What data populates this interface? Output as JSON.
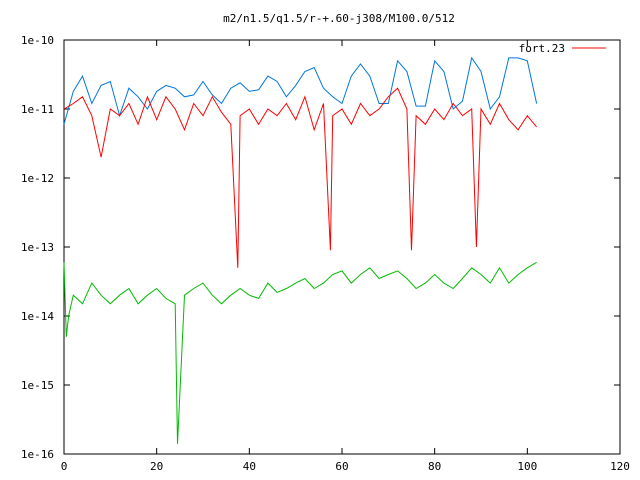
{
  "chart_data": {
    "type": "line",
    "title": "m2/n1.5/q1.5/r-+.60-j308/M100.0/512",
    "xlabel": "",
    "ylabel": "",
    "xlim": [
      0,
      120
    ],
    "ylim": [
      1e-16,
      1e-10
    ],
    "yscale": "log",
    "grid": false,
    "legend_position": "top-right",
    "x_ticks": [
      0,
      20,
      40,
      60,
      80,
      100,
      120
    ],
    "x_tick_labels": [
      "0",
      "20",
      "40",
      "60",
      "80",
      "100",
      "120"
    ],
    "y_ticks": [
      1e-16,
      1e-15,
      1e-14,
      1e-13,
      1e-12,
      1e-11,
      1e-10
    ],
    "y_tick_labels": [
      "1e-16",
      "1e-15",
      "1e-14",
      "1e-13",
      "1e-12",
      "1e-11",
      "1e-10"
    ],
    "series": [
      {
        "name": "",
        "color": "#0077dd",
        "x": [
          0,
          2,
          4,
          6,
          8,
          10,
          12,
          14,
          16,
          18,
          20,
          22,
          24,
          26,
          28,
          30,
          32,
          34,
          36,
          38,
          40,
          42,
          44,
          46,
          48,
          50,
          52,
          54,
          56,
          58,
          60,
          62,
          64,
          66,
          68,
          70,
          72,
          74,
          76,
          78,
          80,
          82,
          84,
          86,
          88,
          90,
          92,
          94,
          96,
          98,
          100,
          102
        ],
        "y": [
          6e-12,
          1.8e-11,
          3e-11,
          1.2e-11,
          2.2e-11,
          2.5e-11,
          8e-12,
          2e-11,
          1.5e-11,
          1e-11,
          1.8e-11,
          2.2e-11,
          2e-11,
          1.5e-11,
          1.6e-11,
          2.5e-11,
          1.6e-11,
          1.2e-11,
          2e-11,
          2.4e-11,
          1.8e-11,
          1.9e-11,
          3e-11,
          2.5e-11,
          1.5e-11,
          2.2e-11,
          3.5e-11,
          4e-11,
          2e-11,
          1.5e-11,
          1.2e-11,
          3e-11,
          4.5e-11,
          3e-11,
          1.2e-11,
          1.2e-11,
          5e-11,
          3.5e-11,
          1.1e-11,
          1.1e-11,
          5e-11,
          3.5e-11,
          1e-11,
          1.3e-11,
          5.5e-11,
          3.5e-11,
          1e-11,
          1.5e-11,
          5.5e-11,
          5.5e-11,
          5e-11,
          1.2e-11
        ]
      },
      {
        "name": "fort.23",
        "color": "#ff0000",
        "x": [
          0,
          2,
          4,
          6,
          8,
          10,
          12,
          14,
          16,
          18,
          20,
          22,
          24,
          26,
          28,
          30,
          32,
          34,
          36,
          37.5,
          38,
          40,
          42,
          44,
          46,
          48,
          50,
          52,
          54,
          56,
          57.5,
          58,
          60,
          62,
          64,
          66,
          68,
          70,
          72,
          74,
          75,
          76,
          78,
          80,
          82,
          84,
          86,
          88,
          89,
          90,
          92,
          94,
          96,
          98,
          100,
          102
        ],
        "y": [
          1e-11,
          1.2e-11,
          1.5e-11,
          8e-12,
          2e-12,
          1e-11,
          8e-12,
          1.2e-11,
          6e-12,
          1.5e-11,
          7e-12,
          1.5e-11,
          1e-11,
          5e-12,
          1.2e-11,
          8e-12,
          1.5e-11,
          9e-12,
          6e-12,
          5e-14,
          8e-12,
          1e-11,
          6e-12,
          1e-11,
          8e-12,
          1.2e-11,
          7e-12,
          1.5e-11,
          5e-12,
          1.2e-11,
          9e-14,
          8e-12,
          1e-11,
          6e-12,
          1.2e-11,
          8e-12,
          1e-11,
          1.5e-11,
          2e-11,
          1e-11,
          9e-14,
          8e-12,
          6e-12,
          1e-11,
          7e-12,
          1.2e-11,
          8e-12,
          1e-11,
          1e-13,
          1e-11,
          6e-12,
          1.2e-11,
          7e-12,
          5e-12,
          8e-12,
          5.5e-12
        ]
      },
      {
        "name": "",
        "color": "#00bb00",
        "x": [
          0,
          0.5,
          1,
          2,
          4,
          6,
          8,
          10,
          12,
          14,
          16,
          18,
          20,
          22,
          24,
          24.5,
          26,
          28,
          30,
          32,
          34,
          36,
          38,
          40,
          42,
          44,
          46,
          48,
          50,
          52,
          54,
          56,
          58,
          60,
          62,
          64,
          66,
          68,
          70,
          72,
          74,
          76,
          78,
          80,
          82,
          84,
          86,
          88,
          90,
          92,
          94,
          96,
          98,
          100,
          102
        ],
        "y": [
          6e-14,
          5e-15,
          1e-14,
          2e-14,
          1.5e-14,
          3e-14,
          2e-14,
          1.5e-14,
          2e-14,
          2.5e-14,
          1.5e-14,
          2e-14,
          2.5e-14,
          1.8e-14,
          1.5e-14,
          1.4e-16,
          2e-14,
          2.5e-14,
          3e-14,
          2e-14,
          1.5e-14,
          2e-14,
          2.5e-14,
          2e-14,
          1.8e-14,
          3e-14,
          2.2e-14,
          2.5e-14,
          3e-14,
          3.5e-14,
          2.5e-14,
          3e-14,
          4e-14,
          4.5e-14,
          3e-14,
          4e-14,
          5e-14,
          3.5e-14,
          4e-14,
          4.5e-14,
          3.5e-14,
          2.5e-14,
          3e-14,
          4e-14,
          3e-14,
          2.5e-14,
          3.5e-14,
          5e-14,
          4e-14,
          3e-14,
          5e-14,
          3e-14,
          4e-14,
          5e-14,
          6e-14
        ]
      }
    ]
  }
}
